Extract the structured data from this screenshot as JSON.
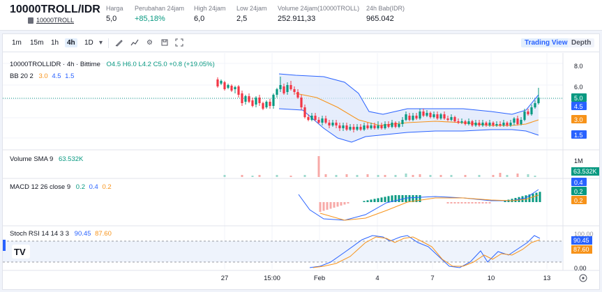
{
  "header": {
    "pair": "10000TROLL/IDR",
    "sub_link": "10000TROLL",
    "stats": [
      {
        "label": "Harga",
        "value": "5,0"
      },
      {
        "label": "Perubahan 24jam",
        "value": "+85,18%"
      },
      {
        "label": "High 24jam",
        "value": "6,0"
      },
      {
        "label": "Low 24jam",
        "value": "2,5"
      },
      {
        "label": "Volume 24jam(10000TROLL)",
        "value": "252.911,33"
      },
      {
        "label": "24h Bab(IDR)",
        "value": "965.042"
      }
    ]
  },
  "toolbar": {
    "timeframes": [
      "1m",
      "15m",
      "1h",
      "4h",
      "1D"
    ],
    "active_timeframe": "4h",
    "icons": [
      "chevron-down-icon",
      "draw-icon",
      "indicators-icon",
      "gear-icon",
      "screenshot-icon",
      "fullscreen-icon"
    ],
    "trading_view_label": "Trading View",
    "depth_label": "Depth"
  },
  "legends": {
    "symbol": "10000TROLLIDR · 4h · Bittime",
    "ohlc": "O4.5 H6.0 L4.2 C5.0 +0.8 (+19.05%)",
    "bb_label": "BB 20 2",
    "bb_vals": [
      "3.0",
      "4.5",
      "1.5"
    ],
    "volume_label": "Volume SMA 9",
    "volume_val": "63.532K",
    "macd_label": "MACD 12 26 close 9",
    "macd_vals": [
      "0.2",
      "0.4",
      "0.2"
    ],
    "rsi_label": "Stoch RSI 14 14 3 3",
    "rsi_vals": [
      "90.45",
      "87.60"
    ]
  },
  "axis": {
    "price_ticks": [
      "8.0",
      "6.0",
      "5.0",
      "4.5",
      "3.0",
      "1.5"
    ],
    "volume_ticks": [
      "1M",
      "63.532K"
    ],
    "macd_ticks": [
      "0.4",
      "0.2",
      "0.2"
    ],
    "rsi_ticks": [
      "100.00",
      "90.45",
      "87.60",
      "0.00"
    ],
    "time_ticks": [
      "27",
      "15:00",
      "Feb",
      "4",
      "7",
      "10",
      "13"
    ]
  },
  "colors": {
    "up": "#089981",
    "down": "#f23645",
    "bb_basis": "#f7931a",
    "bb_band": "#2962ff",
    "rsi_k": "#2962ff",
    "rsi_d": "#f7931a"
  }
}
